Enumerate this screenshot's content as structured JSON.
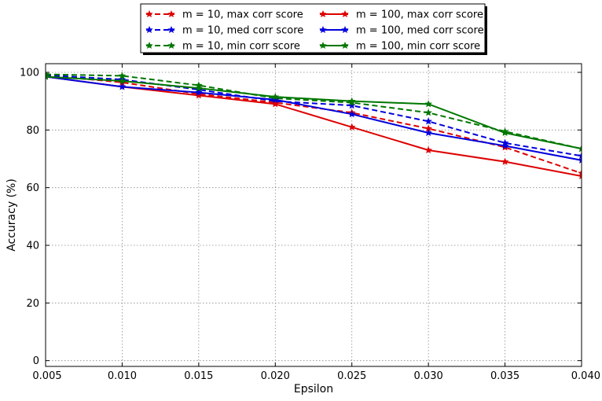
{
  "chart_data": {
    "type": "line",
    "title": "",
    "xlabel": "Epsilon",
    "ylabel": "Accuracy (%)",
    "xlim": [
      0.005,
      0.04
    ],
    "ylim": [
      -2,
      103
    ],
    "xticks": [
      "0.005",
      "0.010",
      "0.015",
      "0.020",
      "0.025",
      "0.030",
      "0.035",
      "0.040"
    ],
    "yticks": [
      "0",
      "20",
      "40",
      "60",
      "80",
      "100"
    ],
    "grid": true,
    "legend_position": "top-center, above plot",
    "x": [
      0.005,
      0.01,
      0.015,
      0.02,
      0.025,
      0.03,
      0.035,
      0.04
    ],
    "series": [
      {
        "name": "m = 10, max corr score",
        "color": "#dd0000",
        "dash": true,
        "values": [
          99,
          96.5,
          92.5,
          89.5,
          86,
          80.5,
          74,
          65
        ]
      },
      {
        "name": "m = 10, med corr score",
        "color": "#0000dd",
        "dash": true,
        "values": [
          99,
          97.5,
          94,
          90,
          88.5,
          83,
          75.5,
          71
        ]
      },
      {
        "name": "m = 10, min corr score",
        "color": "#007700",
        "dash": true,
        "values": [
          99.3,
          98.8,
          95.5,
          91,
          89.5,
          86,
          79.5,
          73.5
        ]
      },
      {
        "name": "m = 100, max corr score",
        "color": "#dd0000",
        "dash": false,
        "values": [
          98.5,
          95,
          92,
          89,
          81,
          73,
          69,
          64
        ]
      },
      {
        "name": "m = 100, med corr score",
        "color": "#0000dd",
        "dash": false,
        "values": [
          98.5,
          95,
          93,
          90.5,
          85.5,
          79,
          74.5,
          69.5
        ]
      },
      {
        "name": "m = 100, min corr score",
        "color": "#007700",
        "dash": false,
        "values": [
          98.5,
          97,
          94.5,
          91.5,
          90,
          89,
          79,
          73.5
        ]
      }
    ]
  }
}
